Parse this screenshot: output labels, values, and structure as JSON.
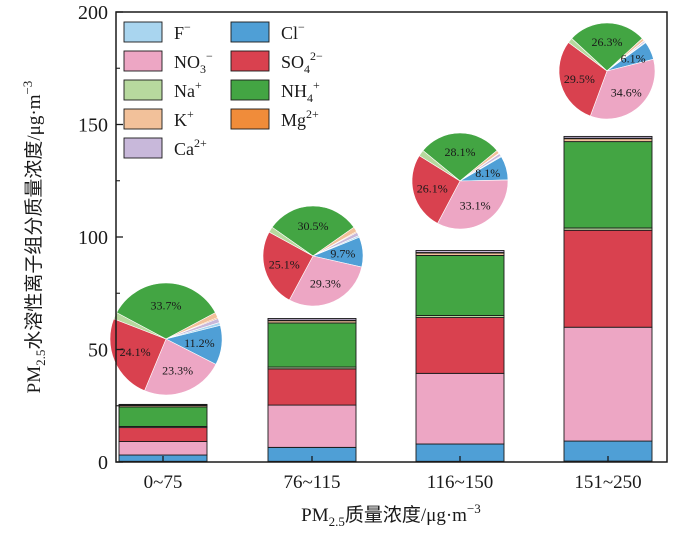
{
  "chart_data": {
    "type": "bar",
    "stacked": true,
    "xlabel": {
      "prefix": "PM",
      "sub": "2.5",
      "suffix": "质量浓度/μg·m",
      "sup": "−3"
    },
    "ylabel": {
      "prefix": "PM",
      "sub": "2.5",
      "suffix": "水溶性离子组分质量浓度/μg·m",
      "sup": "−3"
    },
    "ylim": [
      0,
      200
    ],
    "yticks": [
      "0",
      "50",
      "100",
      "150",
      "200"
    ],
    "categories": [
      "0~75",
      "76~115",
      "116~150",
      "151~250"
    ],
    "series": [
      {
        "id": "F",
        "name": "F",
        "sup": "−",
        "sub": "",
        "color": "#a9d5ef",
        "values": [
          0.3,
          0.3,
          0.3,
          0.4
        ]
      },
      {
        "id": "Cl",
        "name": "Cl",
        "sup": "−",
        "sub": "",
        "color": "#4f9fd6",
        "values": [
          2.8,
          6.2,
          7.7,
          8.9
        ]
      },
      {
        "id": "NO3",
        "name": "NO",
        "sub": "3",
        "sup": "−",
        "color": "#eda6c4",
        "values": [
          6.0,
          18.8,
          31.4,
          50.6
        ]
      },
      {
        "id": "SO4",
        "name": "SO",
        "sub": "4",
        "sup": "2−",
        "color": "#d9414f",
        "values": [
          6.2,
          16.1,
          24.8,
          43.1
        ]
      },
      {
        "id": "Na",
        "name": "Na",
        "sub": "",
        "sup": "+",
        "color": "#b7d99e",
        "values": [
          0.5,
          0.8,
          0.9,
          1.0
        ]
      },
      {
        "id": "NH4",
        "name": "NH",
        "sub": "4",
        "sup": "+",
        "color": "#43a543",
        "values": [
          8.7,
          19.6,
          26.7,
          38.4
        ]
      },
      {
        "id": "K",
        "name": "K",
        "sub": "",
        "sup": "+",
        "color": "#f2c19a",
        "values": [
          0.6,
          1.0,
          1.1,
          1.3
        ]
      },
      {
        "id": "Mg",
        "name": "Mg",
        "sub": "",
        "sup": "2+",
        "color": "#f08c3a",
        "values": [
          0.1,
          0.2,
          0.2,
          0.2
        ]
      },
      {
        "id": "Ca",
        "name": "Ca",
        "sub": "",
        "sup": "2+",
        "color": "#c8b8da",
        "values": [
          0.4,
          0.8,
          0.9,
          0.8
        ]
      }
    ],
    "pies": [
      {
        "category": "0~75",
        "slices": [
          {
            "series": "NH4",
            "value": 33.7,
            "label": "33.7%"
          },
          {
            "series": "K",
            "value": 1.5,
            "label": ""
          },
          {
            "series": "Mg",
            "value": 0.3,
            "label": ""
          },
          {
            "series": "Ca",
            "value": 1.2,
            "label": ""
          },
          {
            "series": "F",
            "value": 0.8,
            "label": ""
          },
          {
            "series": "Cl",
            "value": 11.2,
            "label": "11.2%"
          },
          {
            "series": "NO3",
            "value": 23.3,
            "label": "23.3%"
          },
          {
            "series": "SO4",
            "value": 24.1,
            "label": "24.1%"
          },
          {
            "series": "Na",
            "value": 1.9,
            "label": ""
          }
        ]
      },
      {
        "category": "76~115",
        "slices": [
          {
            "series": "NH4",
            "value": 30.5,
            "label": "30.5%"
          },
          {
            "series": "K",
            "value": 1.6,
            "label": ""
          },
          {
            "series": "Mg",
            "value": 0.3,
            "label": ""
          },
          {
            "series": "Ca",
            "value": 1.2,
            "label": ""
          },
          {
            "series": "F",
            "value": 0.5,
            "label": ""
          },
          {
            "series": "Cl",
            "value": 9.7,
            "label": "9.7%"
          },
          {
            "series": "NO3",
            "value": 29.3,
            "label": "29.3%"
          },
          {
            "series": "SO4",
            "value": 25.1,
            "label": "25.1%"
          },
          {
            "series": "Na",
            "value": 1.8,
            "label": ""
          }
        ]
      },
      {
        "category": "116~150",
        "slices": [
          {
            "series": "NH4",
            "value": 28.1,
            "label": "28.1%"
          },
          {
            "series": "K",
            "value": 1.1,
            "label": ""
          },
          {
            "series": "Mg",
            "value": 0.2,
            "label": ""
          },
          {
            "series": "Ca",
            "value": 0.9,
            "label": ""
          },
          {
            "series": "F",
            "value": 0.3,
            "label": ""
          },
          {
            "series": "Cl",
            "value": 8.1,
            "label": "8.1%"
          },
          {
            "series": "NO3",
            "value": 33.1,
            "label": "33.1%"
          },
          {
            "series": "SO4",
            "value": 26.1,
            "label": "26.1%"
          },
          {
            "series": "Na",
            "value": 2.1,
            "label": ""
          }
        ]
      },
      {
        "category": "151~250",
        "slices": [
          {
            "series": "NH4",
            "value": 26.3,
            "label": "26.3%"
          },
          {
            "series": "K",
            "value": 0.9,
            "label": ""
          },
          {
            "series": "Mg",
            "value": 0.1,
            "label": ""
          },
          {
            "series": "Ca",
            "value": 0.5,
            "label": ""
          },
          {
            "series": "F",
            "value": 0.3,
            "label": ""
          },
          {
            "series": "Cl",
            "value": 6.1,
            "label": "6.1%"
          },
          {
            "series": "NO3",
            "value": 34.6,
            "label": "34.6%"
          },
          {
            "series": "SO4",
            "value": 29.5,
            "label": "29.5%"
          },
          {
            "series": "Na",
            "value": 1.7,
            "label": ""
          }
        ]
      }
    ],
    "legend": {
      "placement": "top-left",
      "order": [
        "F",
        "Cl",
        "NO3",
        "SO4",
        "Na",
        "NH4",
        "K",
        "Mg",
        "Ca"
      ]
    },
    "grid": false
  }
}
